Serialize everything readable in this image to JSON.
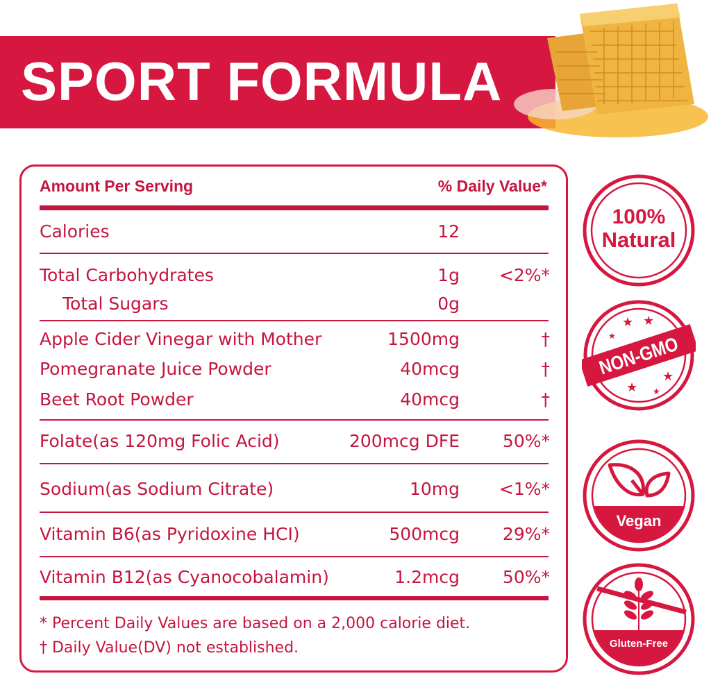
{
  "banner": {
    "title": "SPORT FORMULA"
  },
  "panel": {
    "header_left": "Amount Per Serving",
    "header_right": "% Daily Value*",
    "rows": [
      {
        "name": "Calories",
        "amount": "12",
        "dv": ""
      },
      {
        "name": "Total Carbohydrates",
        "amount": "1g",
        "dv": "<2%*"
      },
      {
        "name": "Total Sugars",
        "amount": "0g",
        "dv": ""
      },
      {
        "name": "Apple Cider Vinegar with Mother",
        "amount": "1500mg",
        "dv": "†"
      },
      {
        "name": "Pomegranate Juice Powder",
        "amount": "40mcg",
        "dv": "†"
      },
      {
        "name": "Beet Root Powder",
        "amount": "40mcg",
        "dv": "†"
      },
      {
        "name": "Folate(as 120mg Folic Acid)",
        "amount": "200mcg DFE",
        "dv": "50%*"
      },
      {
        "name": "Sodium(as Sodium Citrate)",
        "amount": "10mg",
        "dv": "<1%*"
      },
      {
        "name": "Vitamin B6(as Pyridoxine HCI)",
        "amount": "500mcg",
        "dv": "29%*"
      },
      {
        "name": "Vitamin B12(as Cyanocobalamin)",
        "amount": "1.2mcg",
        "dv": "50%*"
      }
    ],
    "footnotes": [
      "* Percent Daily Values are based on a 2,000 calorie diet.",
      "†  Daily Value(DV) not established."
    ]
  },
  "badges": {
    "natural_line1": "100%",
    "natural_line2": "Natural",
    "nongmo": "NON-GMO",
    "vegan": "Vegan",
    "gluten": "Gluten-Free"
  },
  "colors": {
    "brand_red": "#d6173f",
    "text_red": "#c4153f",
    "honey": "#f2a91c"
  }
}
